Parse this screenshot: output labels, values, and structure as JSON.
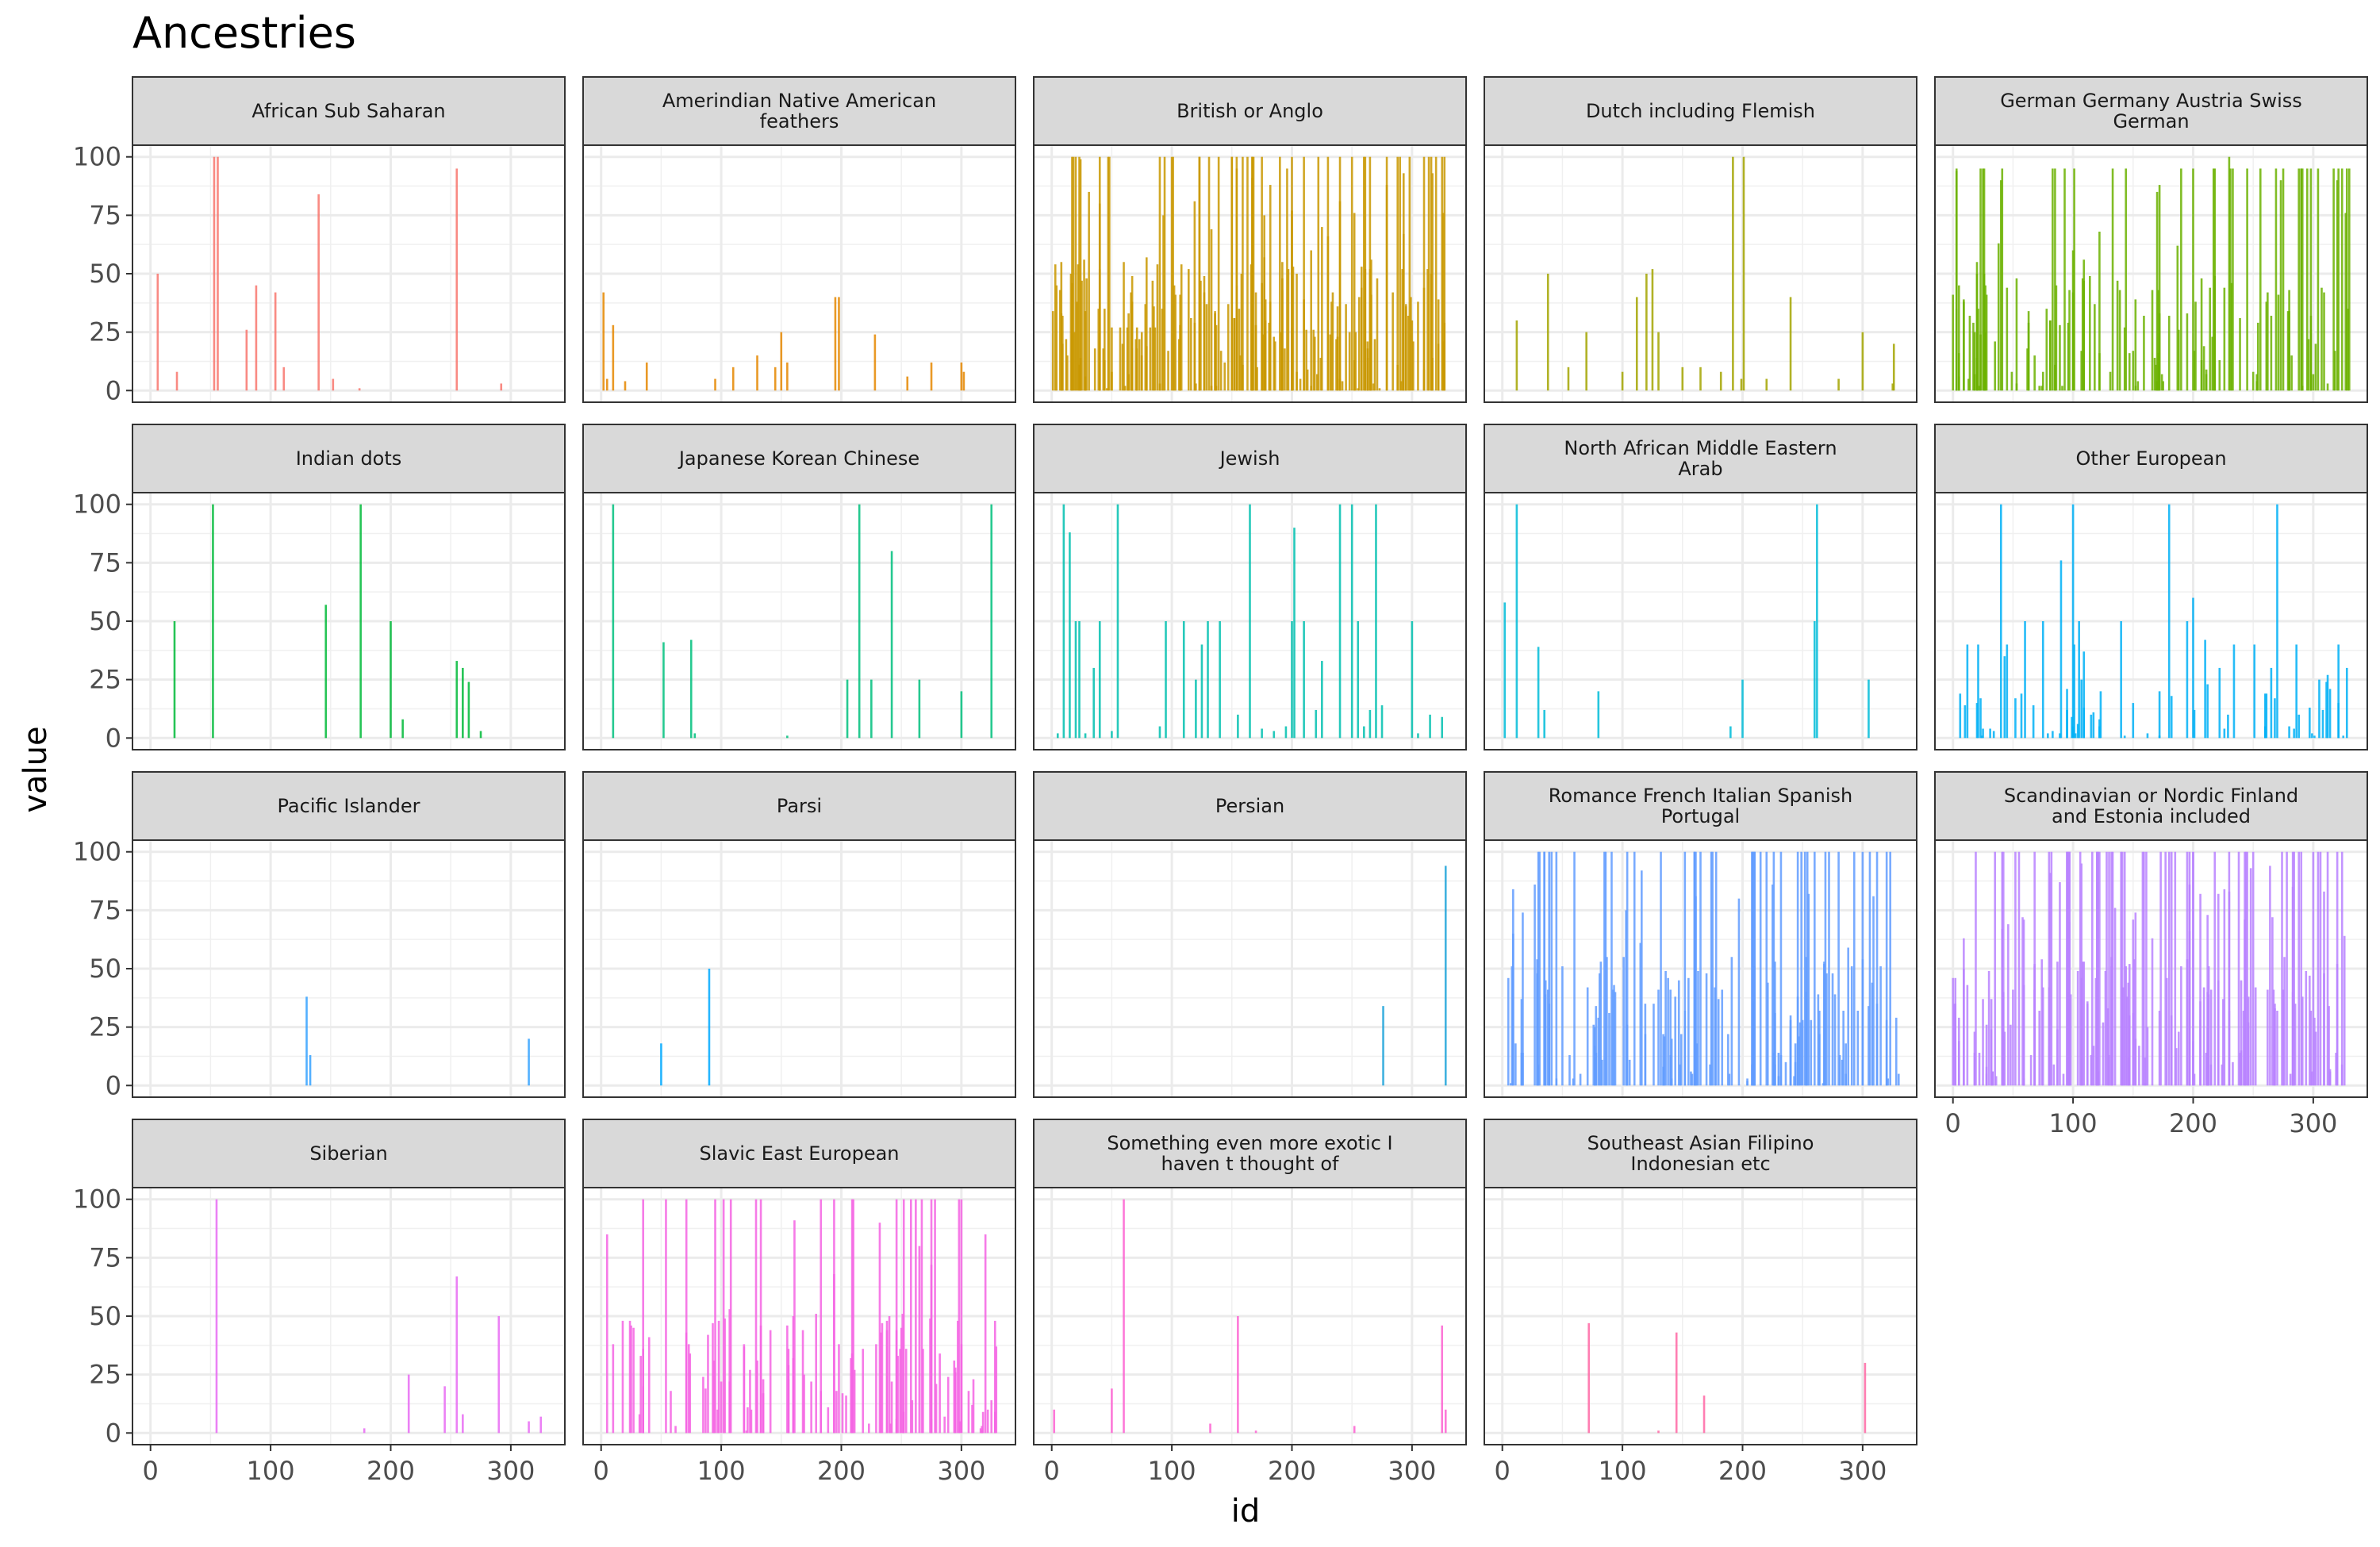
{
  "chart_data": {
    "type": "bar",
    "title": "Ancestries",
    "xlabel": "id",
    "ylabel": "value",
    "xlim": [
      -15,
      345
    ],
    "ylim": [
      -5,
      105
    ],
    "x_ticks": [
      0,
      100,
      200,
      300
    ],
    "y_ticks": [
      0,
      25,
      50,
      75,
      100
    ],
    "grid": true,
    "legend": "none",
    "facet_columns": 5,
    "panels": [
      {
        "label": [
          "African Sub Saharan"
        ],
        "color": "#F8766D",
        "bars": [
          [
            6,
            50
          ],
          [
            22,
            8
          ],
          [
            53,
            100
          ],
          [
            56,
            100
          ],
          [
            80,
            26
          ],
          [
            88,
            45
          ],
          [
            104,
            42
          ],
          [
            111,
            10
          ],
          [
            140,
            84
          ],
          [
            152,
            5
          ],
          [
            174,
            1
          ],
          [
            255,
            95
          ],
          [
            292,
            3
          ]
        ]
      },
      {
        "label": [
          "Amerindian Native American",
          "feathers"
        ],
        "color": "#E58700",
        "bars": [
          [
            2,
            42
          ],
          [
            5,
            5
          ],
          [
            10,
            28
          ],
          [
            20,
            4
          ],
          [
            38,
            12
          ],
          [
            95,
            5
          ],
          [
            110,
            10
          ],
          [
            130,
            15
          ],
          [
            145,
            10
          ],
          [
            150,
            25
          ],
          [
            155,
            12
          ],
          [
            195,
            40
          ],
          [
            198,
            40
          ],
          [
            228,
            24
          ],
          [
            255,
            6
          ],
          [
            275,
            12
          ],
          [
            300,
            12
          ],
          [
            302,
            8
          ]
        ]
      },
      {
        "label": [
          "British or Anglo"
        ],
        "color": "#C99800",
        "dense": true,
        "seed": 11,
        "count": 230,
        "max": 100,
        "min": 1,
        "fill_prob": 0.55,
        "bars": [
          [
            4,
            45
          ],
          [
            40,
            100
          ],
          [
            90,
            100
          ],
          [
            150,
            100
          ],
          [
            210,
            100
          ],
          [
            260,
            100
          ],
          [
            310,
            100
          ],
          [
            325,
            100
          ]
        ]
      },
      {
        "label": [
          "Dutch including Flemish"
        ],
        "color": "#A3A500",
        "bars": [
          [
            12,
            30
          ],
          [
            38,
            50
          ],
          [
            55,
            10
          ],
          [
            70,
            25
          ],
          [
            100,
            8
          ],
          [
            112,
            40
          ],
          [
            120,
            50
          ],
          [
            125,
            52
          ],
          [
            130,
            25
          ],
          [
            150,
            10
          ],
          [
            165,
            10
          ],
          [
            182,
            8
          ],
          [
            192,
            100
          ],
          [
            199,
            5
          ],
          [
            201,
            100
          ],
          [
            220,
            5
          ],
          [
            240,
            40
          ],
          [
            280,
            5
          ],
          [
            300,
            25
          ],
          [
            325,
            3
          ],
          [
            326,
            20
          ]
        ]
      },
      {
        "label": [
          "German Germany Austria Swiss",
          "German"
        ],
        "color": "#6BB100",
        "dense": true,
        "seed": 23,
        "count": 150,
        "max": 95,
        "min": 2,
        "fill_prob": 0.45,
        "bars": [
          [
            5,
            45
          ],
          [
            40,
            90
          ],
          [
            100,
            60
          ],
          [
            170,
            85
          ],
          [
            230,
            100
          ],
          [
            290,
            95
          ],
          [
            320,
            90
          ]
        ]
      },
      {
        "label": [
          "Indian dots"
        ],
        "color": "#00BA38",
        "bars": [
          [
            20,
            50
          ],
          [
            52,
            100
          ],
          [
            146,
            57
          ],
          [
            175,
            100
          ],
          [
            200,
            50
          ],
          [
            210,
            8
          ],
          [
            255,
            33
          ],
          [
            260,
            30
          ],
          [
            265,
            24
          ],
          [
            275,
            3
          ]
        ]
      },
      {
        "label": [
          "Japanese Korean Chinese"
        ],
        "color": "#00BF7D",
        "bars": [
          [
            10,
            100
          ],
          [
            52,
            41
          ],
          [
            75,
            42
          ],
          [
            78,
            2
          ],
          [
            155,
            1
          ],
          [
            205,
            25
          ],
          [
            215,
            100
          ],
          [
            225,
            25
          ],
          [
            242,
            80
          ],
          [
            265,
            25
          ],
          [
            300,
            20
          ],
          [
            325,
            100
          ]
        ]
      },
      {
        "label": [
          "Jewish"
        ],
        "color": "#00C0AF",
        "bars": [
          [
            5,
            2
          ],
          [
            10,
            100
          ],
          [
            15,
            88
          ],
          [
            20,
            50
          ],
          [
            23,
            50
          ],
          [
            28,
            2
          ],
          [
            35,
            30
          ],
          [
            40,
            50
          ],
          [
            50,
            3
          ],
          [
            55,
            100
          ],
          [
            90,
            5
          ],
          [
            95,
            50
          ],
          [
            110,
            50
          ],
          [
            120,
            25
          ],
          [
            125,
            40
          ],
          [
            130,
            50
          ],
          [
            140,
            50
          ],
          [
            155,
            10
          ],
          [
            165,
            100
          ],
          [
            175,
            4
          ],
          [
            185,
            3
          ],
          [
            195,
            5
          ],
          [
            200,
            50
          ],
          [
            202,
            90
          ],
          [
            210,
            50
          ],
          [
            220,
            12
          ],
          [
            225,
            33
          ],
          [
            240,
            100
          ],
          [
            250,
            100
          ],
          [
            255,
            50
          ],
          [
            260,
            5
          ],
          [
            265,
            12
          ],
          [
            270,
            100
          ],
          [
            275,
            14
          ],
          [
            300,
            50
          ],
          [
            305,
            2
          ],
          [
            315,
            10
          ],
          [
            325,
            9
          ]
        ]
      },
      {
        "label": [
          "North African Middle Eastern",
          "Arab"
        ],
        "color": "#00BCD8",
        "bars": [
          [
            2,
            58
          ],
          [
            12,
            100
          ],
          [
            30,
            39
          ],
          [
            35,
            12
          ],
          [
            80,
            20
          ],
          [
            190,
            5
          ],
          [
            200,
            25
          ],
          [
            260,
            50
          ],
          [
            262,
            100
          ],
          [
            305,
            25
          ]
        ]
      },
      {
        "label": [
          "Other European"
        ],
        "color": "#00B0F6",
        "dense": true,
        "seed": 37,
        "count": 60,
        "max": 40,
        "min": 1,
        "fill_prob": 0.5,
        "bars": [
          [
            40,
            100
          ],
          [
            45,
            40
          ],
          [
            60,
            50
          ],
          [
            75,
            50
          ],
          [
            90,
            76
          ],
          [
            100,
            100
          ],
          [
            105,
            50
          ],
          [
            115,
            10
          ],
          [
            140,
            50
          ],
          [
            180,
            100
          ],
          [
            195,
            50
          ],
          [
            200,
            60
          ],
          [
            210,
            42
          ],
          [
            222,
            30
          ],
          [
            265,
            30
          ],
          [
            270,
            100
          ],
          [
            280,
            5
          ],
          [
            305,
            25
          ],
          [
            328,
            30
          ]
        ]
      },
      {
        "label": [
          "Pacific Islander"
        ],
        "color": "#35A2FF",
        "bars": [
          [
            130,
            38
          ],
          [
            133,
            13
          ],
          [
            315,
            20
          ]
        ]
      },
      {
        "label": [
          "Parsi"
        ],
        "color": "#00A9FF",
        "bars": [
          [
            50,
            18
          ],
          [
            90,
            50
          ]
        ]
      },
      {
        "label": [
          "Persian"
        ],
        "color": "#1FA3D9",
        "bars": [
          [
            276,
            34
          ],
          [
            328,
            94
          ]
        ]
      },
      {
        "label": [
          "Romance French Italian Spanish",
          "Portugal"
        ],
        "color": "#619CFF",
        "dense": true,
        "seed": 53,
        "count": 170,
        "max": 100,
        "min": 1,
        "fill_prob": 0.5,
        "bars": [
          [
            5,
            46
          ],
          [
            30,
            100
          ],
          [
            60,
            100
          ],
          [
            110,
            100
          ],
          [
            160,
            100
          ],
          [
            210,
            100
          ],
          [
            260,
            100
          ],
          [
            300,
            100
          ],
          [
            330,
            5
          ]
        ]
      },
      {
        "label": [
          "Scandinavian or Nordic Finland",
          "and Estonia included"
        ],
        "color": "#B983FF",
        "dense": true,
        "seed": 71,
        "count": 210,
        "max": 100,
        "min": 1,
        "fill_prob": 0.55,
        "bars": [
          [
            2,
            46
          ],
          [
            35,
            100
          ],
          [
            80,
            100
          ],
          [
            140,
            100
          ],
          [
            200,
            100
          ],
          [
            250,
            100
          ],
          [
            300,
            100
          ],
          [
            320,
            100
          ]
        ]
      },
      {
        "label": [
          "Siberian"
        ],
        "color": "#E76BF3",
        "bars": [
          [
            55,
            100
          ],
          [
            178,
            2
          ],
          [
            215,
            25
          ],
          [
            245,
            20
          ],
          [
            255,
            67
          ],
          [
            260,
            8
          ],
          [
            290,
            50
          ],
          [
            315,
            5
          ],
          [
            325,
            7
          ]
        ]
      },
      {
        "label": [
          "Slavic East European"
        ],
        "color": "#F564E3",
        "dense": true,
        "seed": 89,
        "count": 120,
        "max": 100,
        "min": 1,
        "fill_prob": 0.5,
        "bars": [
          [
            5,
            85
          ],
          [
            35,
            100
          ],
          [
            95,
            100
          ],
          [
            160,
            50
          ],
          [
            210,
            100
          ],
          [
            265,
            80
          ],
          [
            300,
            100
          ],
          [
            320,
            85
          ]
        ]
      },
      {
        "label": [
          "Something even more exotic I",
          "haven t thought of"
        ],
        "color": "#FD61D1",
        "bars": [
          [
            2,
            10
          ],
          [
            50,
            19
          ],
          [
            60,
            100
          ],
          [
            132,
            4
          ],
          [
            155,
            50
          ],
          [
            170,
            1
          ],
          [
            252,
            3
          ],
          [
            325,
            46
          ],
          [
            328,
            10
          ]
        ]
      },
      {
        "label": [
          "Southeast Asian Filipino",
          "Indonesian etc"
        ],
        "color": "#FF67A4",
        "bars": [
          [
            72,
            47
          ],
          [
            130,
            1
          ],
          [
            145,
            43
          ],
          [
            168,
            16
          ],
          [
            302,
            30
          ]
        ]
      }
    ]
  }
}
